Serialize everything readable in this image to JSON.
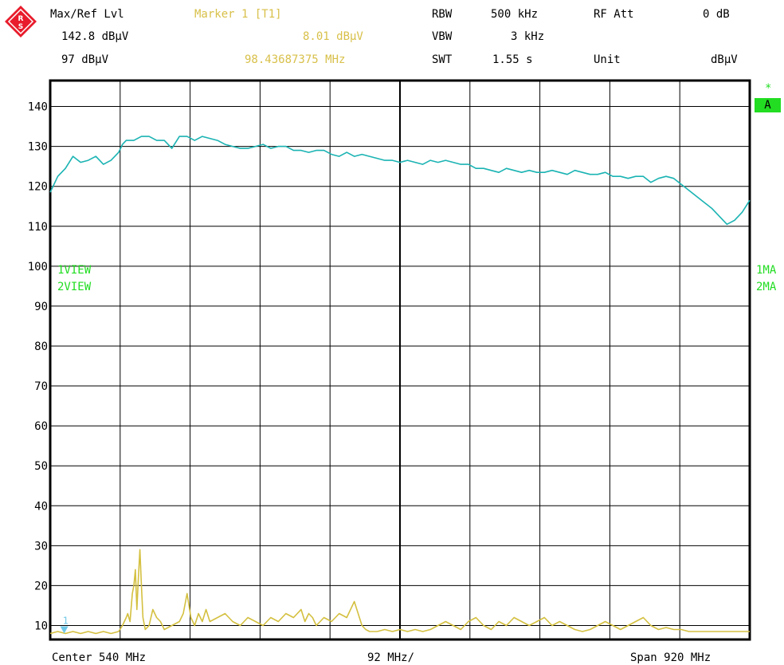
{
  "header": {
    "ref_lvl_label": "Max/Ref Lvl",
    "ref_lvl_value": "142.8 dBμV",
    "ref_lvl_value2": "97 dBμV",
    "marker_label": "Marker 1 [T1]",
    "marker_level": "8.01 dBμV",
    "marker_freq": "98.43687375 MHz",
    "rbw_label": "RBW",
    "rbw_value": "500 kHz",
    "vbw_label": "VBW",
    "vbw_value": "3 kHz",
    "swt_label": "SWT",
    "swt_value": "1.55 s",
    "rf_att_label": "RF Att",
    "rf_att_value": "0 dB",
    "unit_label": "Unit",
    "unit_value": "dBμV"
  },
  "side": {
    "left_trace1": "1VIEW",
    "left_trace2": "2VIEW",
    "right_trace1": "1MA",
    "right_trace2": "2MA",
    "star": "*",
    "badge": "A",
    "marker_number": "1"
  },
  "footer": {
    "center": "Center 540 MHz",
    "div": "92 MHz/",
    "span": "Span 920 MHz"
  },
  "colors": {
    "trace1": "#1bb3b3",
    "trace2": "#d4c040",
    "accent": "#22dd22",
    "marker": "#70c8e8",
    "logo": "#e81c2c"
  },
  "chart_data": {
    "type": "line",
    "title": "",
    "xlabel": "",
    "ylabel": "",
    "xlim": [
      80,
      1000
    ],
    "ylim": [
      6.5,
      146.5
    ],
    "yticks": [
      10,
      20,
      30,
      40,
      50,
      60,
      70,
      80,
      90,
      100,
      110,
      120,
      130,
      140
    ],
    "ytick_labels": [
      "10",
      "20",
      "30",
      "40",
      "50",
      "60",
      "70",
      "80",
      "90",
      "100",
      "110",
      "120",
      "130",
      "140"
    ],
    "grid": true,
    "series": [
      {
        "name": "1VIEW",
        "x": [
          80,
          85,
          90,
          100,
          110,
          120,
          130,
          140,
          150,
          160,
          170,
          175,
          180,
          190,
          200,
          210,
          220,
          230,
          240,
          250,
          260,
          270,
          280,
          290,
          300,
          310,
          320,
          330,
          340,
          350,
          360,
          370,
          380,
          390,
          400,
          410,
          420,
          430,
          440,
          450,
          460,
          470,
          480,
          490,
          500,
          510,
          520,
          530,
          540,
          550,
          560,
          570,
          580,
          590,
          600,
          610,
          620,
          630,
          640,
          650,
          660,
          670,
          680,
          690,
          700,
          710,
          720,
          730,
          740,
          750,
          760,
          770,
          780,
          790,
          800,
          810,
          820,
          830,
          840,
          850,
          860,
          870,
          880,
          890,
          900,
          910,
          920,
          930,
          940,
          950,
          960,
          970,
          980,
          990,
          1000
        ],
        "values": [
          118.5,
          120.5,
          122.5,
          124.5,
          127.5,
          126,
          126.5,
          127.5,
          125.5,
          126.5,
          128.5,
          130.5,
          131.5,
          131.5,
          132.5,
          132.5,
          131.5,
          131.5,
          129.5,
          132.5,
          132.5,
          131.5,
          132.5,
          132,
          131.5,
          130.5,
          130,
          129.5,
          129.5,
          130,
          130.5,
          129.5,
          130,
          130,
          129,
          129,
          128.5,
          129,
          129,
          128,
          127.5,
          128.5,
          127.5,
          128,
          127.5,
          127,
          126.5,
          126.5,
          126,
          126.5,
          126,
          125.5,
          126.5,
          126,
          126.5,
          126,
          125.5,
          125.5,
          124.5,
          124.5,
          124,
          123.5,
          124.5,
          124,
          123.5,
          124,
          123.5,
          123.5,
          124,
          123.5,
          123,
          124,
          123.5,
          123,
          123,
          123.5,
          122.5,
          122.5,
          122,
          122.5,
          122.5,
          121,
          122,
          122.5,
          122,
          120.5,
          119,
          117.5,
          116,
          114.5,
          112.5,
          110.5,
          111.5,
          113.5,
          116.5
        ]
      },
      {
        "name": "2VIEW",
        "x": [
          80,
          90,
          100,
          110,
          120,
          130,
          140,
          150,
          160,
          170,
          175,
          180,
          182,
          185,
          188,
          190,
          192,
          194,
          196,
          198,
          200,
          202,
          205,
          210,
          215,
          220,
          225,
          230,
          240,
          250,
          255,
          260,
          265,
          270,
          275,
          280,
          285,
          290,
          300,
          310,
          320,
          330,
          340,
          350,
          360,
          370,
          380,
          390,
          400,
          410,
          415,
          420,
          425,
          430,
          440,
          450,
          460,
          470,
          480,
          490,
          495,
          500,
          510,
          520,
          530,
          540,
          550,
          560,
          570,
          580,
          590,
          600,
          610,
          620,
          630,
          640,
          650,
          660,
          670,
          680,
          690,
          700,
          710,
          720,
          730,
          740,
          750,
          760,
          770,
          780,
          790,
          800,
          810,
          820,
          830,
          840,
          850,
          860,
          870,
          880,
          890,
          900,
          910,
          920,
          930,
          940,
          950,
          960,
          970,
          980,
          990,
          1000
        ],
        "values": [
          8,
          8.5,
          8,
          8.5,
          8,
          8.5,
          8,
          8.5,
          8,
          8.5,
          10,
          12,
          13,
          11,
          18,
          20,
          24,
          14,
          22,
          29,
          20,
          12,
          9,
          10,
          14,
          12,
          11,
          9,
          10,
          11,
          13,
          18,
          12,
          10,
          13,
          11,
          14,
          11,
          12,
          13,
          11,
          10,
          12,
          11,
          10,
          12,
          11,
          13,
          12,
          14,
          11,
          13,
          12,
          10,
          12,
          11,
          13,
          12,
          16,
          10,
          9,
          8.5,
          8.5,
          9,
          8.5,
          9,
          8.5,
          9,
          8.5,
          9,
          10,
          11,
          10,
          9,
          11,
          12,
          10,
          9,
          11,
          10,
          12,
          11,
          10,
          11,
          12,
          10,
          11,
          10,
          9,
          8.5,
          9,
          10,
          11,
          10,
          9,
          10,
          11,
          12,
          10,
          9,
          9.5,
          9,
          9,
          8.5,
          8.5,
          8.5,
          8.5,
          8.5,
          8.5,
          8.5,
          8.5,
          8.5
        ]
      }
    ],
    "marker": {
      "x": 98.43687375,
      "y": 8.01
    }
  }
}
